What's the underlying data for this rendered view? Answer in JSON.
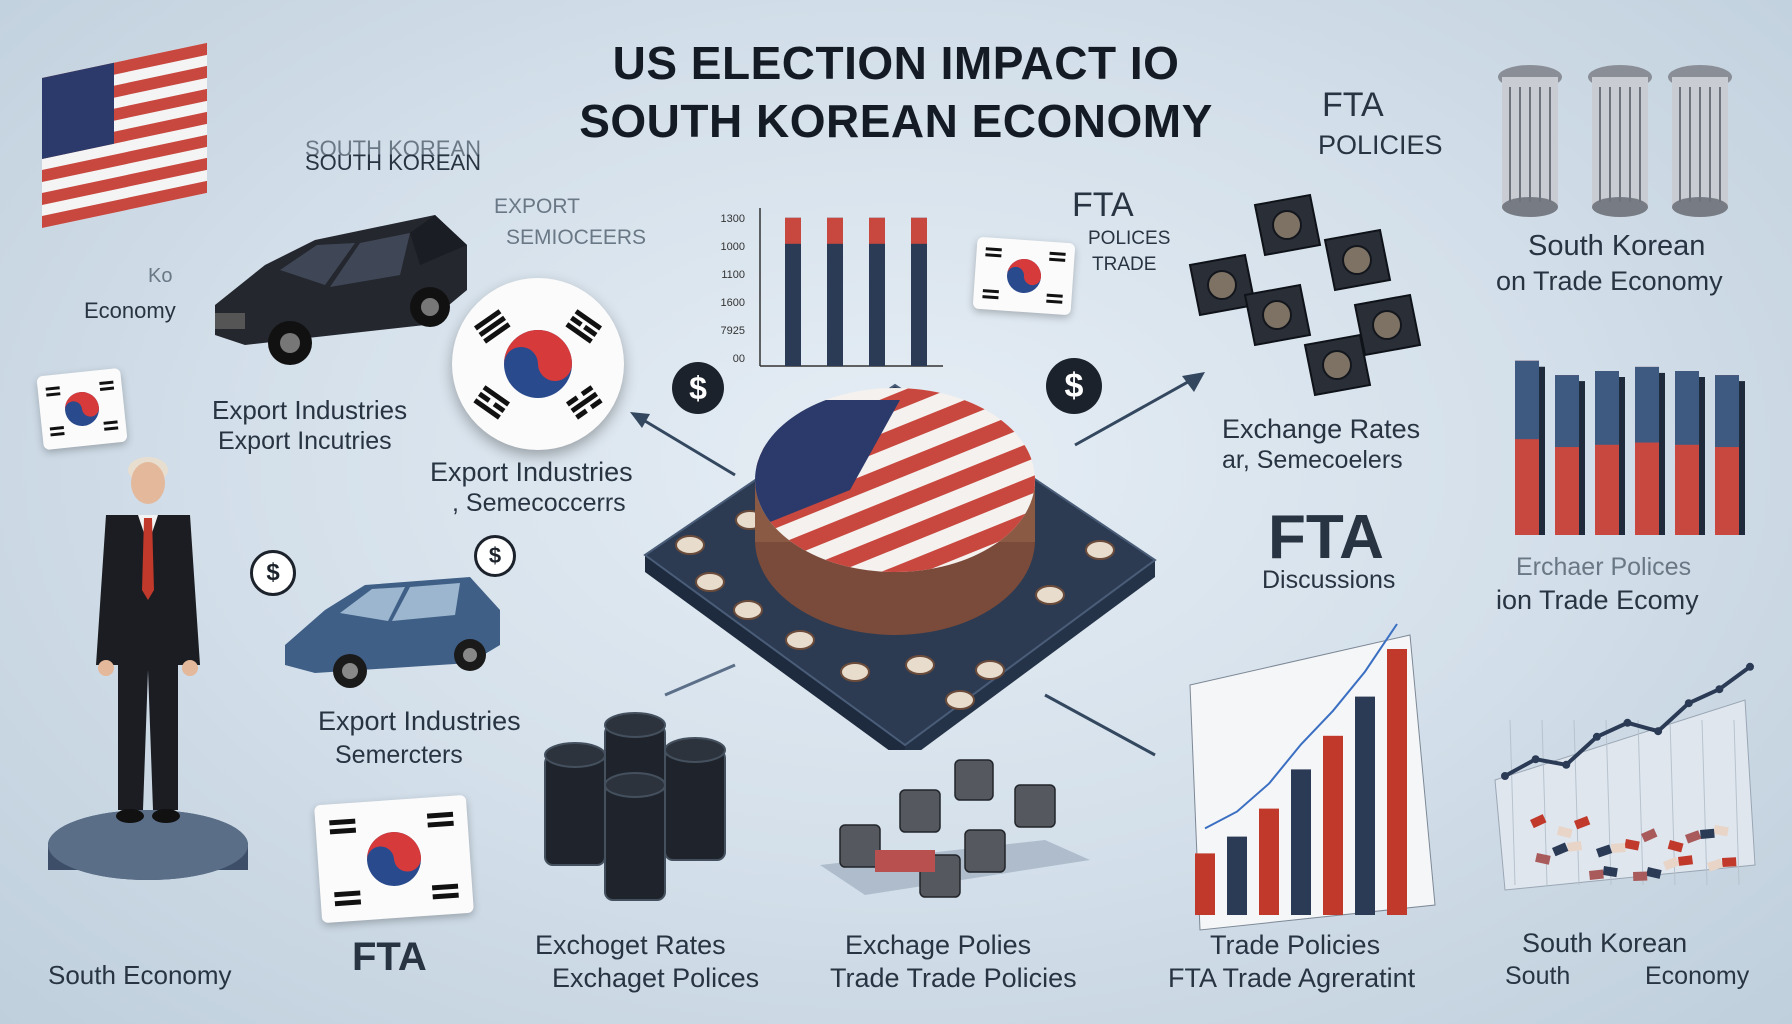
{
  "title_line1": "US ELECTION IMPACT IO",
  "title_line2": "SOUTH KOREAN ECONOMY",
  "labels": {
    "sk_top_a": "SOUTH KOREAN",
    "sk_top_b": "SOUTH KOREAN",
    "ko": "Ko",
    "economy_left": "Economy",
    "export_upper": "EXPORT",
    "semiconductors_upper": "SEMIOCEERS",
    "export_industries_1": "Export Industries",
    "export_industries_2": "Export Incutries",
    "export_industries_3": "Export Industries",
    "semiconductors_3": ", Semecoccerrs",
    "export_industries_4": "Export Industries",
    "semiconductors_4": "Semercters",
    "fta_policies_fta": "FTA",
    "fta_policies_policies": "POLICIES",
    "fta_mid_fta": "FTA",
    "fta_mid_policies": "POLICES",
    "fta_mid_trade": "TRADE",
    "exchange_rates": "Exchange Rates",
    "exchange_sub": "ar, Semecoelers",
    "fta_discussions_fta": "FTA",
    "fta_discussions_sub": "Discussions",
    "sk_right_1": "South Korean",
    "sk_right_2": "on Trade Economy",
    "exchange_policies_right_1": "Erchaer Polices",
    "exchange_policies_right_2": "ion Trade Ecomy",
    "exchange_rates_bottom_1": "Exchoget Rates",
    "exchange_rates_bottom_2": "Exchaget Polices",
    "exchange_policies_bottom_1": "Exchage Polies",
    "exchange_policies_bottom_2": "Trade Trade Policies",
    "trade_policies_1": "Trade Policies",
    "trade_policies_2": "FTA Trade Agreratint",
    "sk_bottom_right_1": "South Korean",
    "sk_bottom_right_2": "South",
    "sk_bottom_right_3": "Economy",
    "south_economy": "South Economy",
    "fta_bottom": "FTA"
  },
  "icons": {
    "dollar": "$"
  },
  "colors": {
    "us_red": "#c8483f",
    "navy": "#2b3a55",
    "kr_red": "#d73a3a",
    "kr_blue": "#2a4a8e",
    "platform": "#34455e"
  },
  "chart_data": [
    {
      "type": "bar",
      "tick_labels": [
        "1300",
        "1000",
        "1100",
        "1600",
        "7925",
        "00"
      ],
      "values": [
        0.95,
        0.95,
        0.95,
        0.95
      ],
      "ylim": [
        0,
        1
      ]
    },
    {
      "type": "bar",
      "values": [
        0.85,
        0.78,
        0.8,
        0.82,
        0.8,
        0.78
      ],
      "ylim": [
        0,
        1
      ]
    },
    {
      "type": "bar",
      "values": [
        0.22,
        0.28,
        0.38,
        0.52,
        0.64,
        0.78,
        0.95
      ],
      "ylim": [
        0,
        1
      ]
    },
    {
      "type": "line",
      "values": [
        0.1,
        0.22,
        0.18,
        0.38,
        0.48,
        0.42,
        0.62,
        0.72,
        0.88
      ],
      "ylim": [
        0,
        1
      ]
    }
  ]
}
